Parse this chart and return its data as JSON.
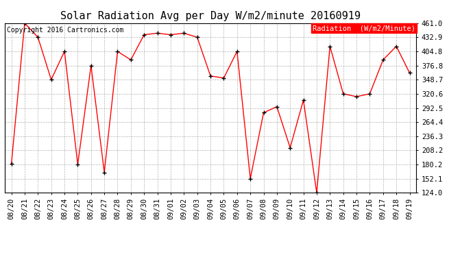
{
  "title": "Solar Radiation Avg per Day W/m2/minute 20160919",
  "copyright": "Copyright 2016 Cartronics.com",
  "legend_label": "Radiation  (W/m2/Minute)",
  "dates": [
    "08/20",
    "08/21",
    "08/22",
    "08/23",
    "08/24",
    "08/25",
    "08/26",
    "08/27",
    "08/28",
    "08/29",
    "08/30",
    "08/31",
    "09/01",
    "09/02",
    "09/03",
    "09/04",
    "09/05",
    "09/06",
    "09/07",
    "09/08",
    "09/09",
    "09/10",
    "09/11",
    "09/12",
    "09/13",
    "09/14",
    "09/15",
    "09/16",
    "09/17",
    "09/18",
    "09/19"
  ],
  "values": [
    181.0,
    461.0,
    432.9,
    348.7,
    404.8,
    180.2,
    376.8,
    164.5,
    404.8,
    388.0,
    438.0,
    441.0,
    438.0,
    441.0,
    432.9,
    356.0,
    352.0,
    404.8,
    152.1,
    283.0,
    295.0,
    213.5,
    308.0,
    124.0,
    415.0,
    320.6,
    315.0,
    320.6,
    388.0,
    415.0,
    362.0
  ],
  "ylim_min": 124.0,
  "ylim_max": 461.0,
  "yticks": [
    124.0,
    152.1,
    180.2,
    208.2,
    236.3,
    264.4,
    292.5,
    320.6,
    348.7,
    376.8,
    404.8,
    432.9,
    461.0
  ],
  "line_color": "red",
  "marker_color": "black",
  "bg_color": "#ffffff",
  "grid_color": "#aaaaaa",
  "legend_bg": "red",
  "legend_fg": "white",
  "title_fontsize": 11,
  "copyright_fontsize": 7,
  "tick_fontsize": 7.5,
  "legend_fontsize": 7.5
}
